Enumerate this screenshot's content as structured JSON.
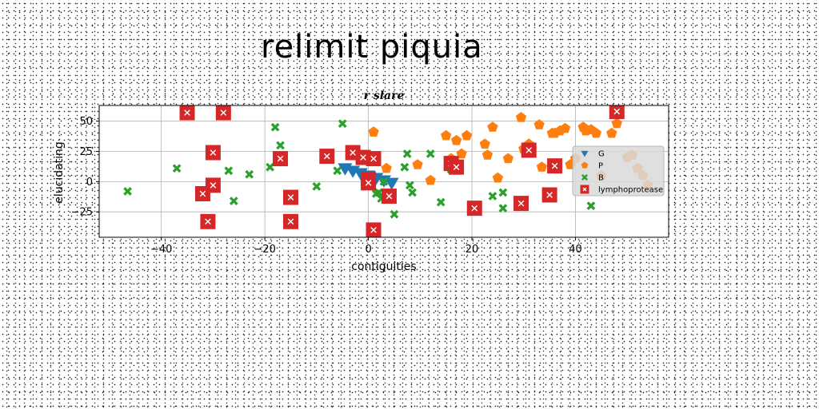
{
  "title": "relimit piquia",
  "chart_data": {
    "type": "scatter",
    "title": "r slare",
    "xlabel": "contiguities",
    "ylabel": "elucidating",
    "xlim": [
      -52,
      58
    ],
    "ylim": [
      -46,
      63
    ],
    "xticks": [
      -40,
      -20,
      0,
      20,
      40
    ],
    "yticks": [
      -25,
      0,
      25,
      50
    ],
    "grid": true,
    "legend_position": "right",
    "series": [
      {
        "name": "G",
        "color": "#1f77b4",
        "marker": "triangle-down",
        "x": [
          -4.5,
          -3,
          -1.5,
          0,
          1.5,
          3,
          4.5
        ],
        "y": [
          11,
          9,
          7,
          5,
          3,
          1,
          -1
        ]
      },
      {
        "name": "P",
        "color": "#ff7f0e",
        "marker": "pentagon",
        "x": [
          1,
          3.5,
          9.5,
          12,
          15,
          16,
          17,
          18,
          19,
          22.5,
          23,
          24,
          25,
          27,
          29.5,
          30,
          31,
          33,
          33.5,
          35.5,
          36,
          37,
          38,
          39,
          40,
          41.5,
          42,
          43,
          44,
          45,
          47,
          48,
          50,
          51,
          52,
          53,
          54
        ],
        "y": [
          41,
          11,
          14,
          1,
          38,
          19,
          34,
          23,
          38,
          31,
          22,
          45,
          3,
          19,
          53,
          27,
          31,
          47,
          12,
          40,
          40,
          42,
          44,
          14,
          19,
          45,
          42,
          43,
          40,
          5,
          40,
          48,
          20,
          22,
          11,
          5,
          -3
        ]
      },
      {
        "name": "B",
        "color": "#2ca02c",
        "marker": "x",
        "x": [
          -46.5,
          -37,
          -27,
          -26,
          -23,
          -19,
          -18,
          -17,
          -10,
          -6,
          -5,
          1.5,
          2,
          2.5,
          3,
          5,
          7,
          7.5,
          8,
          8.5,
          12,
          14,
          16,
          24,
          26,
          26,
          43
        ],
        "y": [
          -8,
          11,
          9,
          -16,
          6,
          12,
          45,
          30,
          -4,
          9,
          48,
          -10,
          -9,
          -14,
          0,
          -27,
          12,
          23,
          -3,
          -9,
          23,
          -17,
          10,
          -12,
          -9,
          -22,
          -20
        ]
      },
      {
        "name": "lymphoprotease",
        "color": "#d62728",
        "marker": "square-x",
        "x": [
          -35,
          -32,
          -31,
          -30,
          -30,
          -28,
          -17,
          -15,
          -15,
          -8,
          -3,
          -1,
          0,
          0,
          1,
          1,
          4,
          16,
          17,
          20.5,
          29.5,
          31,
          35,
          36,
          48
        ],
        "y": [
          57,
          -10,
          -33,
          24,
          -3,
          57,
          19,
          -13,
          -33,
          21,
          24,
          20,
          2,
          -1,
          19,
          -40,
          -12,
          15,
          12,
          -22,
          -18,
          26,
          -11,
          13,
          58
        ]
      }
    ]
  }
}
